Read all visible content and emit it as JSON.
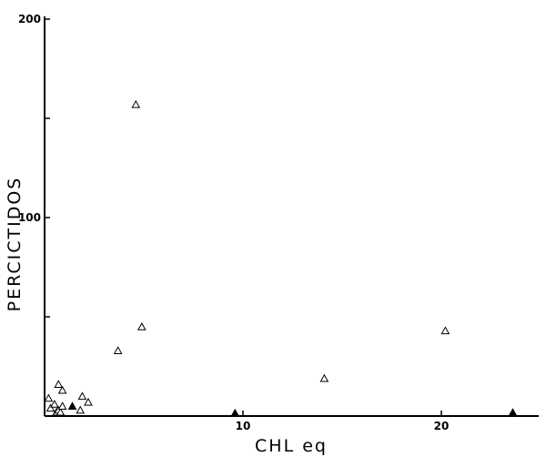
{
  "chart_data": {
    "type": "scatter",
    "title": "",
    "xlabel": "CHL eq",
    "ylabel": "PERCICTIDOS",
    "xlim": [
      0,
      25
    ],
    "ylim": [
      0,
      200
    ],
    "x_ticks": [
      10,
      20
    ],
    "x_tick_labels": [
      "10",
      "20"
    ],
    "y_ticks": [
      50,
      100,
      150,
      200
    ],
    "y_tick_labels": [
      "",
      "100",
      "",
      "200"
    ],
    "grid": false,
    "legend": false,
    "series": [
      {
        "marker": "open-triangle",
        "color": "#000000",
        "x": [
          0.2,
          0.3,
          0.5,
          0.6,
          0.7,
          0.8,
          0.9,
          0.7,
          0.9,
          1.8,
          1.9,
          2.2,
          3.7,
          4.6,
          4.9,
          14.1,
          20.2
        ],
        "y": [
          8,
          3,
          5,
          1,
          2,
          1,
          4,
          15,
          12,
          2,
          9,
          6,
          32,
          156,
          44,
          18,
          42
        ]
      },
      {
        "marker": "filled-triangle",
        "color": "#000000",
        "x": [
          1.4,
          9.6,
          23.6
        ],
        "y": [
          4,
          0.5,
          0.8
        ]
      }
    ]
  }
}
